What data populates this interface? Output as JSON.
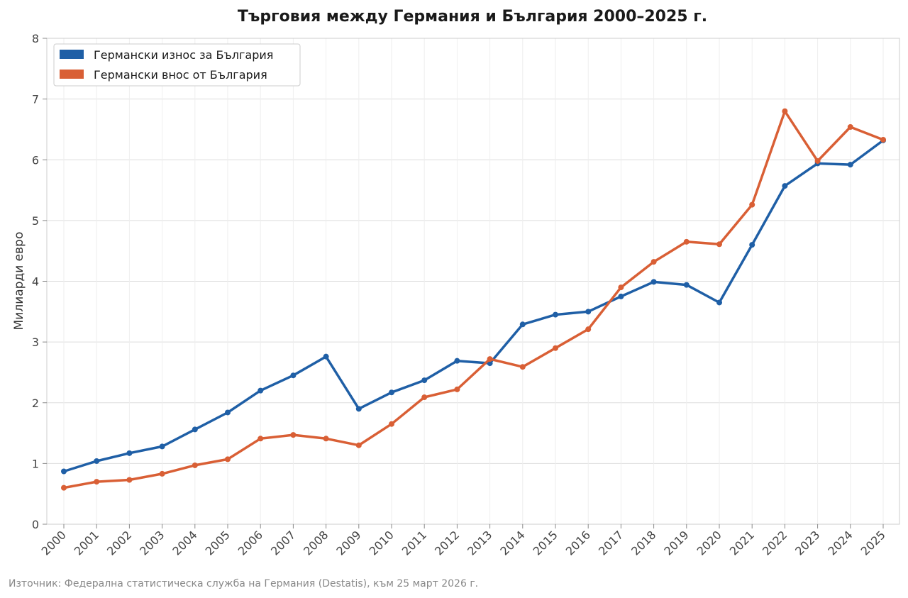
{
  "chart_data": {
    "type": "line",
    "title": "Търговия между Германия и България 2000–2025 г.",
    "xlabel": "",
    "ylabel": "Милиарди евро",
    "categories": [
      "2000",
      "2001",
      "2002",
      "2003",
      "2004",
      "2005",
      "2006",
      "2007",
      "2008",
      "2009",
      "2010",
      "2011",
      "2012",
      "2013",
      "2014",
      "2015",
      "2016",
      "2017",
      "2018",
      "2019",
      "2020",
      "2021",
      "2022",
      "2023",
      "2024",
      "2025"
    ],
    "yticks": [
      0,
      1,
      2,
      3,
      4,
      5,
      6,
      7,
      8
    ],
    "ylim": [
      0,
      8
    ],
    "grid": true,
    "legend_position": "top-left",
    "series": [
      {
        "name": "Германски износ за България",
        "color": "#1f5fa6",
        "values": [
          0.87,
          1.04,
          1.17,
          1.28,
          1.56,
          1.84,
          2.2,
          2.45,
          2.76,
          1.9,
          2.17,
          2.37,
          2.69,
          2.65,
          3.29,
          3.45,
          3.5,
          3.75,
          3.99,
          3.94,
          3.65,
          4.6,
          5.57,
          5.94,
          5.92,
          6.32
        ]
      },
      {
        "name": "Германски внос от България",
        "color": "#d95f35",
        "values": [
          0.6,
          0.7,
          0.73,
          0.83,
          0.97,
          1.07,
          1.41,
          1.47,
          1.41,
          1.3,
          1.65,
          2.09,
          2.22,
          2.72,
          2.59,
          2.9,
          3.21,
          3.9,
          4.32,
          4.65,
          4.61,
          5.26,
          6.8,
          5.98,
          6.54,
          6.33
        ]
      }
    ]
  },
  "source_note": "Източник: Федерална статистическа служба на Германия (Destatis), към 25 март 2026 г."
}
